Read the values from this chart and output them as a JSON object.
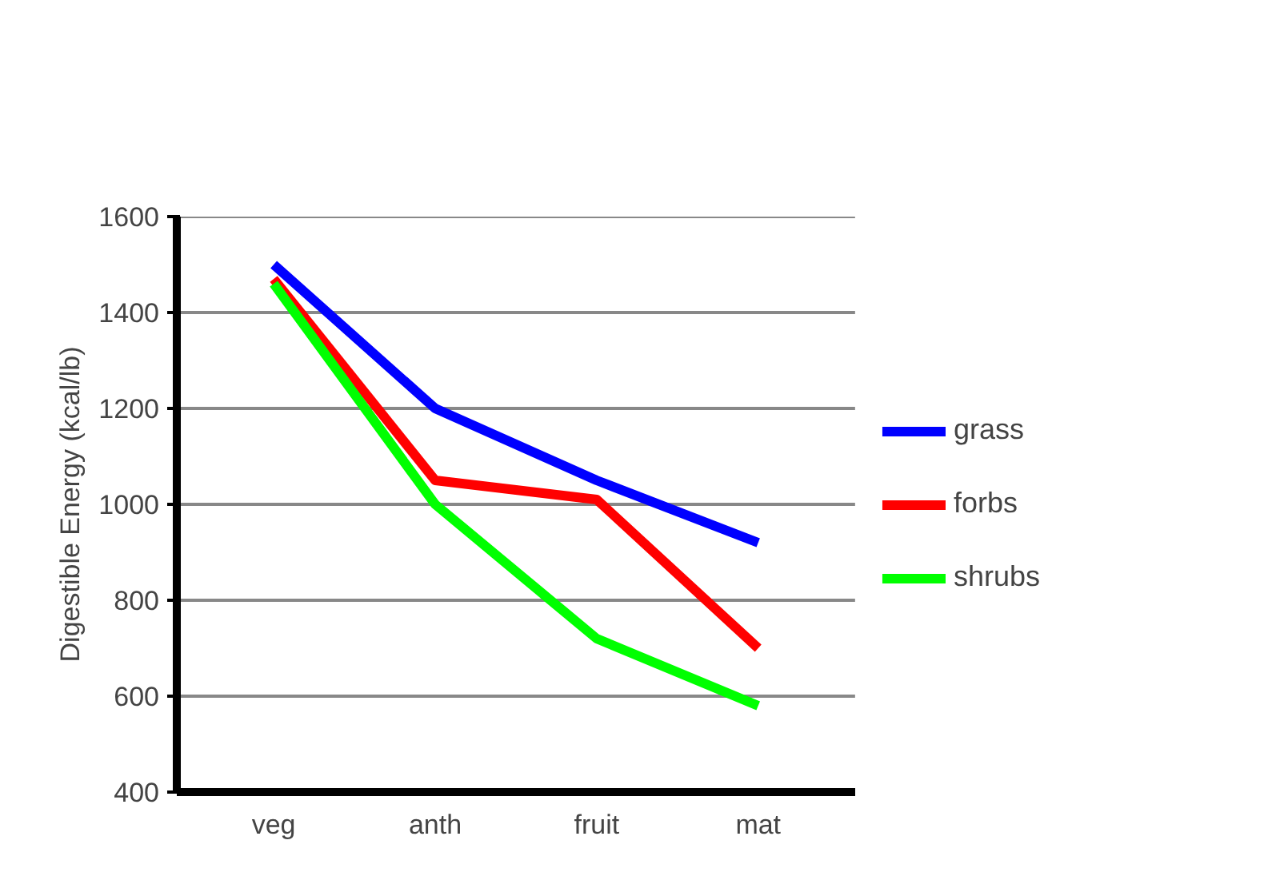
{
  "chart_data": {
    "type": "line",
    "ylabel": "Digestible Energy (kcal/lb)",
    "categories": [
      "veg",
      "anth",
      "fruit",
      "mat"
    ],
    "series": [
      {
        "name": "grass",
        "color": "#0000ff",
        "values": [
          1500,
          1200,
          1050,
          920
        ]
      },
      {
        "name": "forbs",
        "color": "#ff0000",
        "values": [
          1470,
          1050,
          1010,
          700
        ]
      },
      {
        "name": "shrubs",
        "color": "#00ff00",
        "values": [
          1460,
          1000,
          720,
          580
        ]
      }
    ],
    "ylim": [
      400,
      1600
    ],
    "yticks": [
      400,
      600,
      800,
      1000,
      1200,
      1400,
      1600
    ],
    "grid": "y",
    "legend": "right",
    "marker": "none",
    "line_style": "solid"
  }
}
